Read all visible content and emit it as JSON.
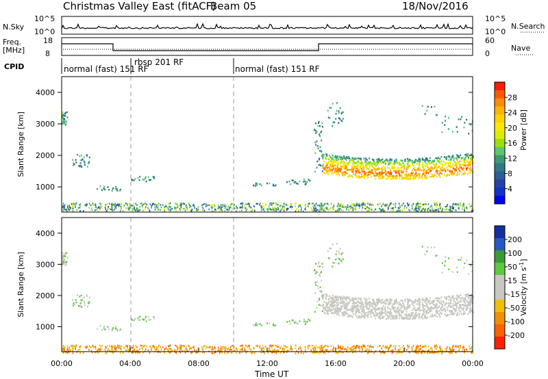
{
  "header": {
    "station": "Christmas Valley East (fitACF)",
    "beam": "Beam 05",
    "date": "18/Nov/2016"
  },
  "strip_labels": {
    "nsky": "N.Sky",
    "nsky_ticks": [
      "10^5",
      "10^0"
    ],
    "nsearch": "N.Search",
    "nsearch_ticks": [
      "10^5",
      "10^0"
    ],
    "freq_title": "Freq.",
    "freq_unit": "[MHz]",
    "freq_ticks": [
      "18",
      "8"
    ],
    "nave": "Nave",
    "nave_ticks": [
      "60",
      "0"
    ],
    "cpid": "CPID"
  },
  "cpid_segments": [
    {
      "label": "normal (fast) 151 RF",
      "start_hour": 0
    },
    {
      "label": "rbsp 201 RF",
      "start_hour": 4
    },
    {
      "label": "normal (fast) 151 RF",
      "start_hour": 10
    }
  ],
  "colorbars": {
    "power": {
      "label": "Power [dB]",
      "ticks": [
        "28",
        "24",
        "20",
        "16",
        "12",
        "8",
        "4"
      ],
      "colors": [
        "#ff1a00",
        "#ff5a00",
        "#ff8c00",
        "#ffb400",
        "#ffd200",
        "#ffe800",
        "#d8f000",
        "#9be000",
        "#5ac86e",
        "#3a9a73",
        "#2e7a86",
        "#2c5c9a",
        "#2244aa",
        "#1133cc",
        "#0000ff"
      ]
    },
    "velocity": {
      "label": "Velocity [m s",
      "label_sup": "-1",
      "label_end": "]",
      "ticks": [
        "200",
        "100",
        "50",
        "15",
        "-15",
        "-50",
        "-100",
        "-200"
      ],
      "colors": [
        "#1430a0",
        "#2858c8",
        "#3a9a3a",
        "#5cc840",
        "#c8c8c0",
        "#c8c8c0",
        "#f0c000",
        "#f09000",
        "#ff6000",
        "#ff2000"
      ]
    }
  },
  "ground_scatter_color": "#c8c8c0",
  "chart_data": [
    {
      "type": "heatmap",
      "panel": "power",
      "ylabel": "Slant Range [km]",
      "yticks": [
        "1000",
        "2000",
        "3000",
        "4000"
      ],
      "ylim": [
        200,
        4500
      ],
      "xlim_hours": [
        0,
        24
      ],
      "features": [
        {
          "desc": "near-range scatter",
          "hours": [
            0,
            24
          ],
          "range_km": [
            250,
            500
          ],
          "power_db": [
            4,
            16
          ]
        },
        {
          "desc": "ionospheric band",
          "hours": [
            15.2,
            24
          ],
          "range_km": [
            1400,
            2200
          ],
          "power_db": [
            8,
            30
          ]
        },
        {
          "desc": "early patch",
          "hours": [
            0,
            0.3
          ],
          "range_km": [
            3000,
            3400
          ],
          "power_db": [
            8,
            16
          ]
        },
        {
          "desc": "early echoes",
          "hours": [
            0.5,
            1.5
          ],
          "range_km": [
            1600,
            2000
          ],
          "power_db": [
            8,
            16
          ]
        }
      ]
    },
    {
      "type": "heatmap",
      "panel": "velocity",
      "ylabel": "Slant Range [km]",
      "yticks": [
        "1000",
        "2000",
        "3000",
        "4000"
      ],
      "ylim": [
        200,
        4500
      ],
      "xlim_hours": [
        0,
        24
      ],
      "features": [
        {
          "desc": "near-range scatter",
          "hours": [
            0,
            24
          ],
          "range_km": [
            250,
            500
          ],
          "velocity_ms": [
            -100,
            -15
          ]
        },
        {
          "desc": "ground scatter band",
          "hours": [
            15.2,
            24
          ],
          "range_km": [
            1400,
            2200
          ],
          "velocity_ms": [
            -15,
            15
          ]
        }
      ]
    }
  ],
  "time_axis": {
    "label": "Time UT",
    "ticks": [
      "00:00",
      "04:00",
      "08:00",
      "12:00",
      "16:00",
      "20:00",
      "00:00"
    ]
  }
}
